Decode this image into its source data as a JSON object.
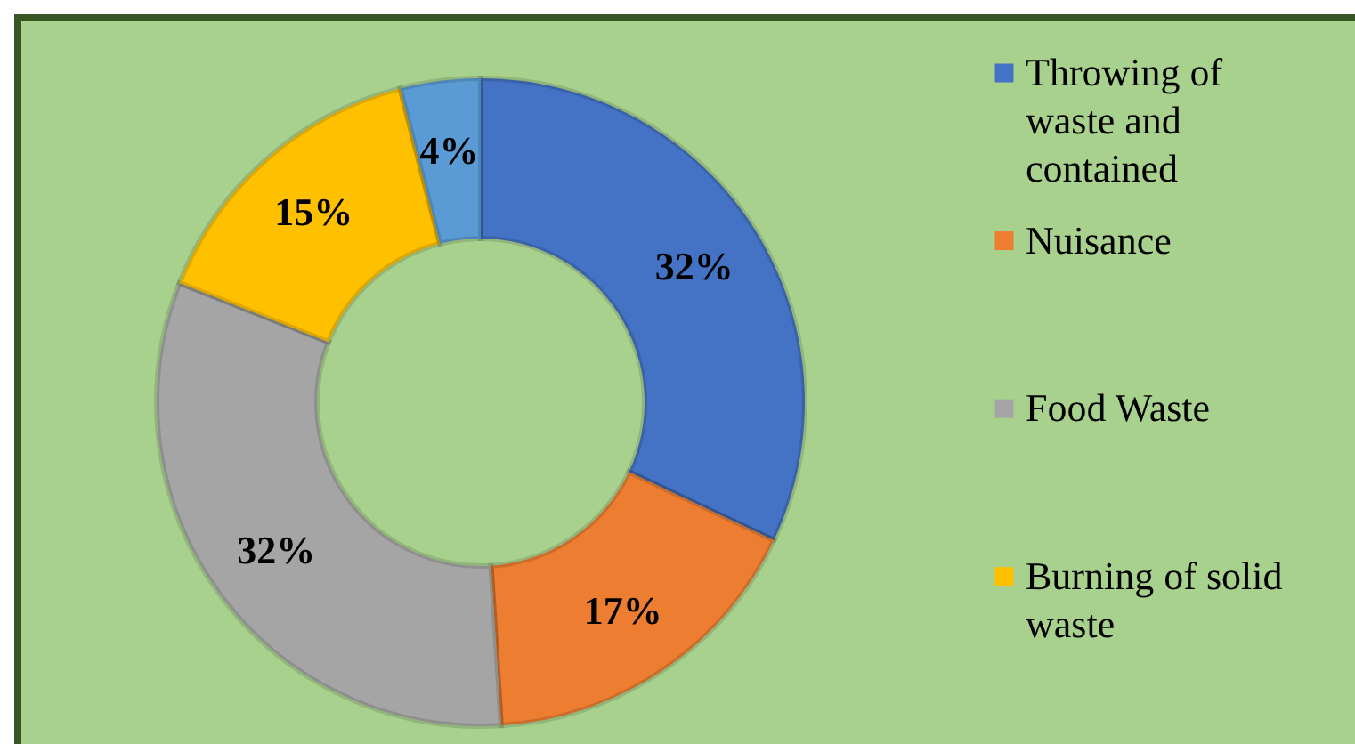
{
  "chart_data": {
    "type": "donut",
    "categories": [
      "Throwing of waste and contained",
      "Nuisance",
      "Food Waste",
      "Burning of solid waste",
      null
    ],
    "values": [
      32,
      17,
      32,
      15,
      4
    ],
    "colors": [
      "#4472c4",
      "#ed7d31",
      "#a5a5a5",
      "#ffc000",
      "#5b9bd5"
    ],
    "value_labels": [
      "32%",
      "17%",
      "32%",
      "15%",
      "4%"
    ],
    "legend": "right"
  }
}
